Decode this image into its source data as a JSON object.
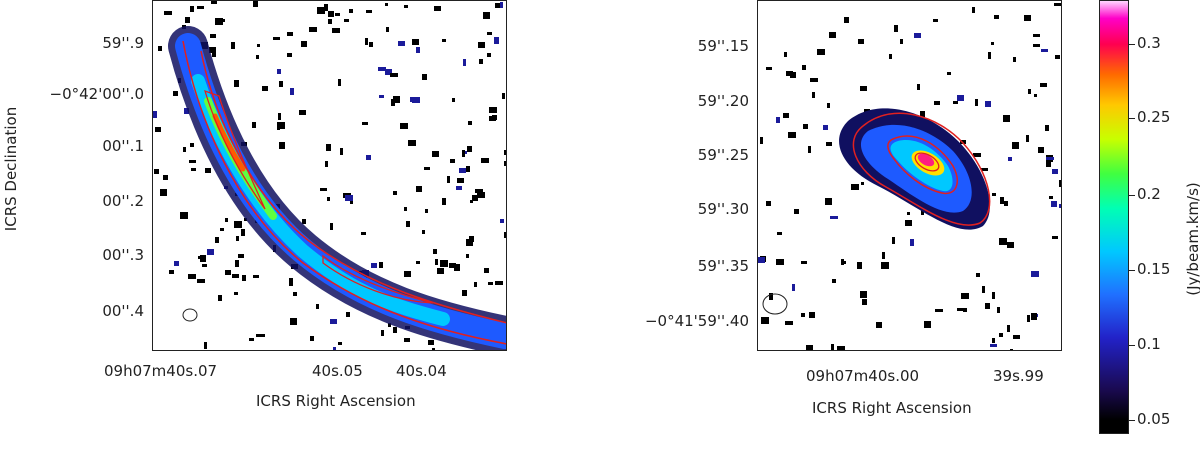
{
  "left_panel": {
    "y_ticks": [
      "59''.9",
      "−0°42'00''.0",
      "00''.1",
      "00''.2",
      "00''.3",
      "00''.4"
    ],
    "x_ticks": [
      "09h07m40s.07",
      "40s.05",
      "40s.04"
    ],
    "y_title": "ICRS Declination",
    "x_title": "ICRS Right Ascension"
  },
  "right_panel": {
    "y_ticks": [
      "59''.15",
      "59''.20",
      "59''.25",
      "59''.30",
      "59''.35",
      "−0°41'59''.40"
    ],
    "x_ticks": [
      "09h07m40s.00",
      "39s.99"
    ],
    "x_title": "ICRS Right Ascension"
  },
  "colorbar": {
    "title": "(Jy/beam.km/s)",
    "ticks": [
      "0.3",
      "0.25",
      "0.2",
      "0.15",
      "0.1",
      "0.05"
    ]
  },
  "colors": {
    "contour": "#e02020",
    "noise": "#000000"
  }
}
